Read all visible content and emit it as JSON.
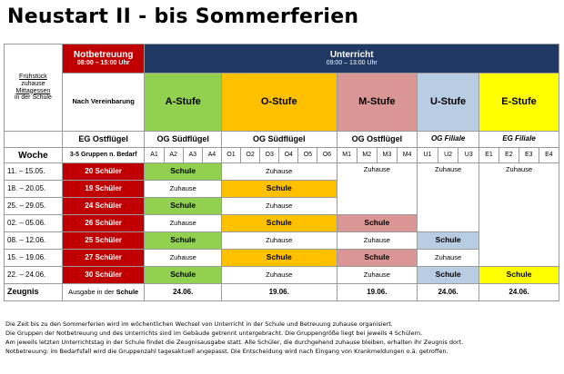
{
  "title": "Neustart II - bis Sommerferien",
  "header": {
    "notbetreuung_label": "Notbetreuung",
    "notbetreuung_time": "08:00 – 15:00 Uhr",
    "unterricht_label": "Unterricht",
    "unterricht_time": "09:00 – 13:00 Uhr",
    "left_info": {
      "fruehstueck": "Frühstück",
      "zuhause": "zuhause",
      "mittagessen": "Mittagessen",
      "in_der_schule": "in der Schule"
    },
    "nach_vereinbarung": "Nach Vereinbarung",
    "stufen": {
      "a": "A-Stufe",
      "o": "O-Stufe",
      "m": "M-Stufe",
      "u": "U-Stufe",
      "e": "E-Stufe"
    }
  },
  "locations": {
    "notbetreuung": "EG Ostflügel",
    "a": "OG Südflügel",
    "o": "OG Südflügel",
    "m": "OG Ostflügel",
    "u": "OG Filiale",
    "e": "EG Filiale"
  },
  "subheader": {
    "woche": "Woche",
    "gruppen": "3-5 Gruppen n. Bedarf",
    "groups": [
      "A1",
      "A2",
      "A3",
      "A4",
      "O1",
      "O2",
      "O3",
      "O4",
      "O5",
      "O6",
      "M1",
      "M2",
      "M3",
      "M4",
      "U1",
      "U2",
      "U3",
      "E1",
      "E2",
      "E3",
      "E4"
    ]
  },
  "cell_texts": {
    "schule": "Schule",
    "zuhause": "Zuhause"
  },
  "weeks": [
    {
      "range": "11. – 15.05.",
      "count": "20 Schüler"
    },
    {
      "range": "18. – 20.05.",
      "count": "19 Schüler"
    },
    {
      "range": "25. – 29.05.",
      "count": "24 Schüler"
    },
    {
      "range": "02. – 05.06.",
      "count": "26 Schüler"
    },
    {
      "range": "08. – 12.06.",
      "count": "25 Schüler"
    },
    {
      "range": "15. – 19.06.",
      "count": "27 Schüler"
    },
    {
      "range": "22. – 24.06.",
      "count": "30 Schüler"
    }
  ],
  "zeugnis": {
    "label": "Zeugnis",
    "ausgabe_prefix": "Ausgabe in der ",
    "ausgabe_bold": "Schule",
    "dates": {
      "a": "24.06.",
      "o": "19.06.",
      "m": "19.06.",
      "u": "24.06.",
      "e": "24.06."
    }
  },
  "notes": [
    "Die Zeit bis zu den Sommerferien wird im wöchentlichen Wechsel von Unterricht in der Schule und Betreuung zuhause organisiert.",
    "Die Gruppen der Notbetreuung und des Unterrichts sind im Gebäude getrennt untergebracht. Die Gruppengröße liegt bei jeweils 4 Schülern.",
    "Am jeweils letzten Unterrichtstag in der Schule findet die Zeugnisausgabe statt. Alle Schüler, die durchgehend zuhause bleiben, erhalten ihr Zeugnis dort.",
    "Notbetreuung: im Bedarfsfall wird die Gruppenzahl tagesaktuell angepasst. Die Entscheidung wird nach Eingang von Krankmeldungen o.ä. getroffen."
  ],
  "colors": {
    "red": "#c00000",
    "navy": "#1f3864",
    "green": "#92d050",
    "orange": "#ffc000",
    "rose": "#da9694",
    "lightblue": "#b8cce4",
    "yellow": "#ffff00"
  }
}
